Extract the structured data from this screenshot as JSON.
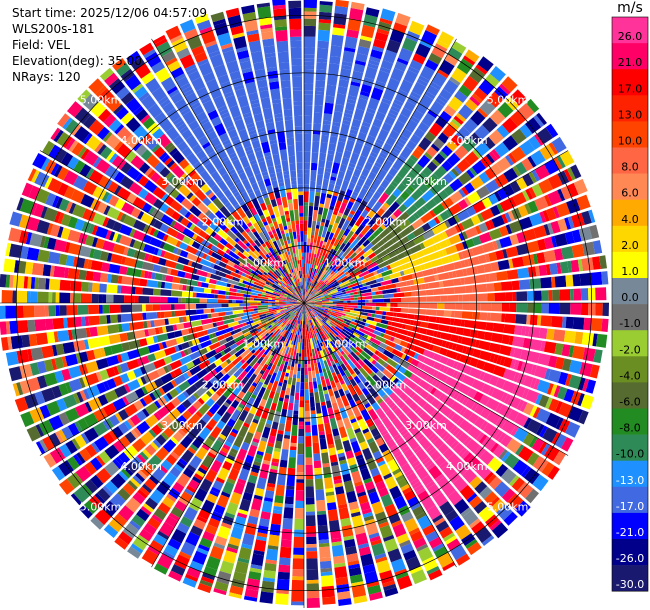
{
  "header": {
    "start_time": "Start time: 2025/12/06 04:57:09",
    "instrument": "WLS200s-181",
    "field": "Field: VEL",
    "elevation": "Elevation(deg): 35.00",
    "nrays": "NRays: 120"
  },
  "colorbar": {
    "title": "m/s",
    "ticks": [
      "26.0",
      "21.0",
      "17.0",
      "13.0",
      "10.0",
      "8.0",
      "6.0",
      "4.0",
      "2.0",
      "1.0",
      "0.0",
      "-1.0",
      "-2.0",
      "-4.0",
      "-6.0",
      "-8.0",
      "-10.0",
      "-13.0",
      "-17.0",
      "-21.0",
      "-26.0",
      "-30.0"
    ],
    "colors": [
      "#ff3399",
      "#ff0066",
      "#ff0000",
      "#ff2200",
      "#ff4400",
      "#ff6644",
      "#ff8855",
      "#ffaa00",
      "#ffd700",
      "#ffff00",
      "#778899",
      "#707070",
      "#9acd32",
      "#6b8e23",
      "#556b2f",
      "#228b22",
      "#2e8b57",
      "#1e90ff",
      "#4169e1",
      "#0000ff",
      "#00008b",
      "#191970"
    ]
  },
  "chart_data": {
    "type": "heatmap",
    "projection": "polar PPI",
    "field": "VEL",
    "units": "m/s",
    "range_rings_km": [
      1,
      2,
      3,
      4,
      5
    ],
    "range_ring_labels": [
      "1.00km",
      "2.00km",
      "3.00km",
      "4.00km",
      "5.00km"
    ],
    "max_range_km": 5.3,
    "nrays": 120,
    "value_range": [
      -30,
      26
    ],
    "coherent_regions": [
      {
        "desc": "blue inbound sector",
        "azimuth_deg": [
          320,
          35
        ],
        "range_km": [
          2.0,
          4.6
        ],
        "value": -17
      },
      {
        "desc": "blue fade",
        "azimuth_deg": [
          35,
          55
        ],
        "range_km": [
          2.3,
          3.2
        ],
        "value": -10
      },
      {
        "desc": "green",
        "azimuth_deg": [
          48,
          65
        ],
        "range_km": [
          1.5,
          2.4
        ],
        "value": -6
      },
      {
        "desc": "yellow",
        "azimuth_deg": [
          60,
          75
        ],
        "range_km": [
          1.6,
          2.8
        ],
        "value": 2
      },
      {
        "desc": "orange",
        "azimuth_deg": [
          72,
          95
        ],
        "range_km": [
          1.7,
          3.4
        ],
        "value": 8
      },
      {
        "desc": "red",
        "azimuth_deg": [
          85,
          110
        ],
        "range_km": [
          1.5,
          3.7
        ],
        "value": 17
      },
      {
        "desc": "pink outbound",
        "azimuth_deg": [
          95,
          150
        ],
        "range_km": [
          2.2,
          4.3
        ],
        "value": 26
      },
      {
        "desc": "red core",
        "azimuth_deg": [
          170,
          180
        ],
        "range_km": [
          0.45,
          0.95
        ],
        "value": 17
      }
    ]
  }
}
